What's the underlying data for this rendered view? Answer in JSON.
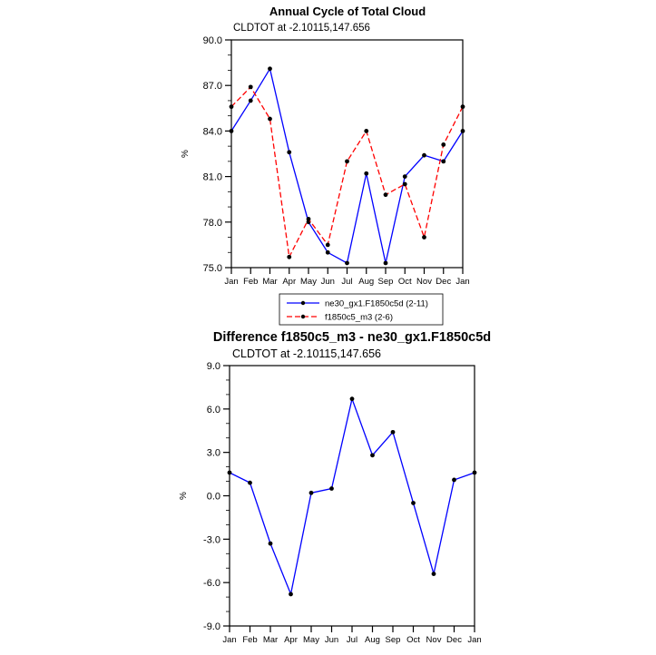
{
  "page": {
    "background": "#ffffff"
  },
  "chart_data": [
    {
      "type": "line",
      "title": "Annual Cycle of Total Cloud",
      "subtitle": "CLDTOT at -2.10115,147.656",
      "ylabel": "%",
      "xlabel": "",
      "categories": [
        "Jan",
        "Feb",
        "Mar",
        "Apr",
        "May",
        "Jun",
        "Jul",
        "Aug",
        "Sep",
        "Oct",
        "Nov",
        "Dec",
        "Jan"
      ],
      "ylim": [
        75.0,
        90.0
      ],
      "yticks": [
        75.0,
        78.0,
        81.0,
        84.0,
        87.0,
        90.0
      ],
      "ytick_labels": [
        "75.0",
        "78.0",
        "81.0",
        "84.0",
        "87.0",
        "90.0"
      ],
      "yminor_step": 1.0,
      "grid": false,
      "legend_position": "below",
      "marker_color": "#000000",
      "series": [
        {
          "name": "ne30_gx1.F1850c5d (2-11)",
          "color": "#0000ff",
          "style": "solid",
          "values": [
            84.0,
            86.0,
            88.1,
            82.6,
            78.0,
            76.0,
            75.3,
            81.2,
            75.3,
            81.0,
            82.4,
            82.0,
            84.0
          ]
        },
        {
          "name": "f1850c5_m3 (2-6)",
          "color": "#ff0000",
          "style": "dashed",
          "values": [
            85.6,
            86.9,
            84.8,
            75.7,
            78.2,
            76.5,
            82.0,
            84.0,
            79.8,
            80.5,
            77.0,
            83.1,
            85.6
          ]
        }
      ]
    },
    {
      "type": "line",
      "title": "Difference f1850c5_m3 - ne30_gx1.F1850c5d",
      "subtitle": "CLDTOT at -2.10115,147.656",
      "ylabel": "%",
      "xlabel": "",
      "categories": [
        "Jan",
        "Feb",
        "Mar",
        "Apr",
        "May",
        "Jun",
        "Jul",
        "Aug",
        "Sep",
        "Oct",
        "Nov",
        "Dec",
        "Jan"
      ],
      "ylim": [
        -9.0,
        9.0
      ],
      "yticks": [
        -9.0,
        -6.0,
        -3.0,
        0.0,
        3.0,
        6.0,
        9.0
      ],
      "ytick_labels": [
        "-9.0",
        "-6.0",
        "-3.0",
        "0.0",
        "3.0",
        "6.0",
        "9.0"
      ],
      "yminor_step": 1.0,
      "grid": false,
      "legend_position": "none",
      "marker_color": "#000000",
      "series": [
        {
          "color": "#0000ff",
          "style": "solid",
          "values": [
            1.6,
            0.9,
            -3.3,
            -6.8,
            0.2,
            0.5,
            6.7,
            2.8,
            4.4,
            -0.5,
            -5.4,
            1.1,
            1.6
          ]
        }
      ]
    }
  ]
}
